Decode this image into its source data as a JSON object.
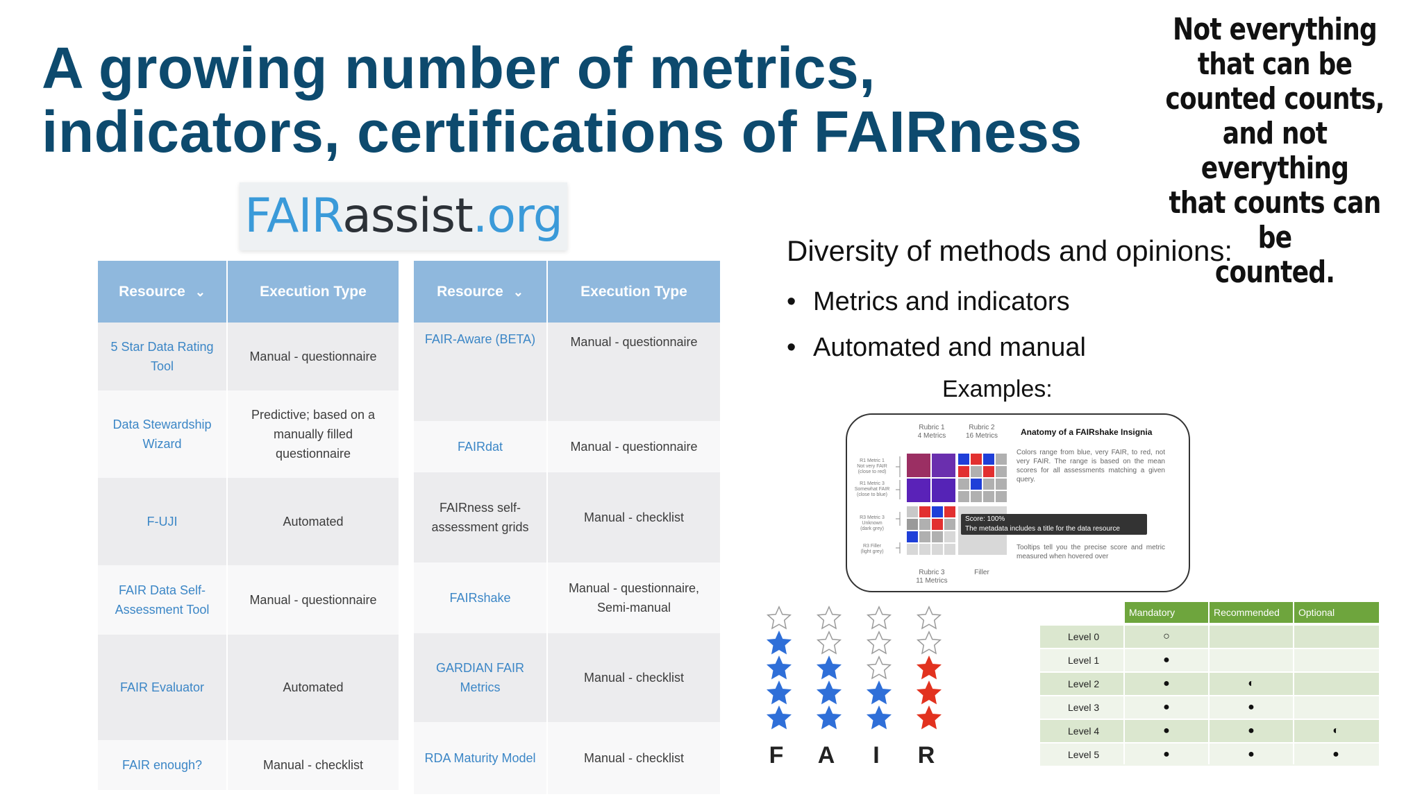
{
  "slide": {
    "title": "A growing number of metrics, indicators, certifications of FAIRness",
    "quote_lines": [
      "Not everything",
      "that can be",
      "counted counts,",
      "and not everything",
      "that counts can be",
      "counted."
    ]
  },
  "logo": {
    "part1": "FAIR",
    "part2": "assist",
    "part3": ".org"
  },
  "table_left": {
    "headers": [
      "Resource",
      "Execution Type"
    ],
    "rows": [
      {
        "resource": "5 Star Data Rating Tool",
        "execution": "Manual - questionnaire"
      },
      {
        "resource": "Data Stewardship Wizard",
        "execution": "Predictive; based on a manually filled questionnaire"
      },
      {
        "resource": "F-UJI",
        "execution": "Automated"
      },
      {
        "resource": "FAIR Data Self-Assessment Tool",
        "execution": "Manual - questionnaire"
      },
      {
        "resource": "FAIR Evaluator",
        "execution": "Automated"
      },
      {
        "resource": "FAIR enough?",
        "execution": "Manual - checklist"
      }
    ]
  },
  "table_right": {
    "headers": [
      "Resource",
      "Execution Type"
    ],
    "rows": [
      {
        "resource": "FAIR-Aware (BETA)",
        "execution": "Manual - questionnaire"
      },
      {
        "resource": "FAIRdat",
        "execution": "Manual - questionnaire"
      },
      {
        "resource": "FAIRness self-assessment grids",
        "execution": "Manual - checklist"
      },
      {
        "resource": "FAIRshake",
        "execution": "Manual - questionnaire, Semi-manual"
      },
      {
        "resource": "GARDIAN FAIR Metrics",
        "execution": "Manual - checklist"
      },
      {
        "resource": "RDA Maturity Model",
        "execution": "Manual - checklist"
      }
    ]
  },
  "diversity": {
    "heading": "Diversity of methods and opinions:",
    "bullets": [
      "Metrics and indicators",
      "Automated and manual"
    ],
    "examples_label": "Examples:"
  },
  "insignia": {
    "title": "Anatomy of a FAIRshake Insignia",
    "rubric1": "Rubric 1\n4 Metrics",
    "rubric2": "Rubric 2\n16 Metrics",
    "rubric3": "Rubric 3\n11 Metrics",
    "filler": "Filler",
    "left_labels": [
      "R1 Metric 1\nNot very FAIR\n(close to red)",
      "R1 Metric 3\nSomewhat FAIR\n(close to blue)",
      "R3 Metric 3\nUnknown\n(dark grey)",
      "R3 Filler\n(light grey)"
    ],
    "desc1": "Colors range from blue, very FAIR, to red, not very FAIR. The range is based on the mean scores for all assessments matching a given query.",
    "desc2": "Tooltips tell you the precise score and metric measured when hovered over",
    "tooltip_line1": "Score: 100%",
    "tooltip_line2": "The metadata includes a title for the data resource"
  },
  "stars": {
    "letters": [
      "F",
      "A",
      "I",
      "R"
    ],
    "counts": [
      {
        "letter": "F",
        "filled": 4,
        "color": "#2f6fd8"
      },
      {
        "letter": "A",
        "filled": 3,
        "color": "#2f6fd8"
      },
      {
        "letter": "I",
        "filled": 2,
        "color": "#2f6fd8"
      },
      {
        "letter": "R",
        "filled": 3,
        "color": "#e2321f"
      }
    ]
  },
  "levels": {
    "headers": [
      "Mandatory",
      "Recommended",
      "Optional"
    ],
    "rows": [
      {
        "label": "Level 0",
        "mandatory": "○",
        "recommended": "",
        "optional": ""
      },
      {
        "label": "Level 1",
        "mandatory": "●",
        "recommended": "",
        "optional": ""
      },
      {
        "label": "Level 2",
        "mandatory": "●",
        "recommended": "◐",
        "optional": ""
      },
      {
        "label": "Level 3",
        "mandatory": "●",
        "recommended": "●",
        "optional": ""
      },
      {
        "label": "Level 4",
        "mandatory": "●",
        "recommended": "●",
        "optional": "◐"
      },
      {
        "label": "Level 5",
        "mandatory": "●",
        "recommended": "●",
        "optional": "●"
      }
    ]
  },
  "colors": {
    "title": "#0d4a6e",
    "table_header": "#8fb8dd",
    "link": "#3b86c6",
    "levels_header": "#6ea53d",
    "star_blue": "#2f6fd8",
    "star_red": "#e2321f"
  }
}
